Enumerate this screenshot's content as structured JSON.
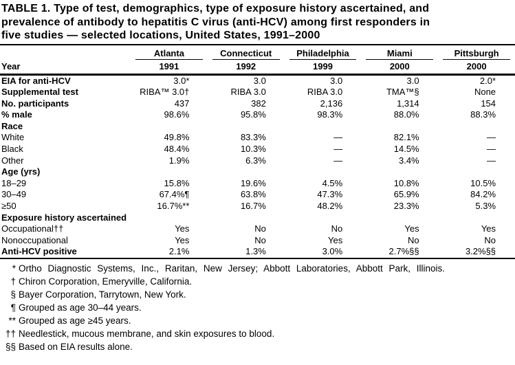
{
  "title": {
    "lines": [
      "TABLE 1. Type of test, demographics, type of exposure history ascertained, and",
      "prevalence of antibody to hepatitis C virus (anti-HCV) among first responders in",
      "five studies — selected locations, United States, 1991–2000"
    ]
  },
  "table": {
    "year_label": "Year",
    "columns": [
      {
        "city": "Atlanta",
        "year": "1991"
      },
      {
        "city": "Connecticut",
        "year": "1992"
      },
      {
        "city": "Philadelphia",
        "year": "1999"
      },
      {
        "city": "Miami",
        "year": "2000"
      },
      {
        "city": "Pittsburgh",
        "year": "2000"
      }
    ],
    "rows": [
      {
        "label": "EIA for anti-HCV",
        "bold": true,
        "indent": 0,
        "values": [
          "3.0*",
          "3.0",
          "3.0",
          "3.0",
          "2.0*"
        ]
      },
      {
        "label": "Supplemental test",
        "bold": true,
        "indent": 0,
        "values": [
          "RIBA™ 3.0†",
          "RIBA 3.0",
          "RIBA 3.0",
          "TMA™§",
          "None"
        ]
      },
      {
        "label": "No. participants",
        "bold": true,
        "indent": 0,
        "values": [
          "437",
          "382",
          "2,136",
          "1,314",
          "154"
        ]
      },
      {
        "label": "% male",
        "bold": true,
        "indent": 0,
        "values": [
          "98.6%",
          "95.8%",
          "98.3%",
          "88.0%",
          "88.3%"
        ]
      },
      {
        "label": "Race",
        "bold": true,
        "indent": 0,
        "values": []
      },
      {
        "label": "White",
        "bold": false,
        "indent": 1,
        "values": [
          "49.8%",
          "83.3%",
          "—",
          "82.1%",
          "—"
        ]
      },
      {
        "label": "Black",
        "bold": false,
        "indent": 1,
        "values": [
          "48.4%",
          "10.3%",
          "—",
          "14.5%",
          "—"
        ]
      },
      {
        "label": "Other",
        "bold": false,
        "indent": 1,
        "values": [
          "1.9%",
          "6.3%",
          "—",
          "3.4%",
          "—"
        ]
      },
      {
        "label": "Age (yrs)",
        "bold": true,
        "indent": 0,
        "values": []
      },
      {
        "label": "18–29",
        "bold": false,
        "indent": 1,
        "values": [
          "15.8%",
          "19.6%",
          "4.5%",
          "10.8%",
          "10.5%"
        ]
      },
      {
        "label": "30–49",
        "bold": false,
        "indent": 1,
        "values": [
          "67.4%¶",
          "63.8%",
          "47.3%",
          "65.9%",
          "84.2%"
        ]
      },
      {
        "label": "≥50",
        "bold": false,
        "indent": 2,
        "values": [
          "16.7%**",
          "16.7%",
          "48.2%",
          "23.3%",
          "5.3%"
        ]
      },
      {
        "label": "Exposure history ascertained",
        "bold": true,
        "indent": 0,
        "values": []
      },
      {
        "label": "Occupational††",
        "bold": false,
        "indent": 1,
        "values": [
          "Yes",
          "No",
          "No",
          "Yes",
          "Yes"
        ]
      },
      {
        "label": "Nonoccupational",
        "bold": false,
        "indent": 1,
        "values": [
          "Yes",
          "No",
          "Yes",
          "No",
          "No"
        ]
      },
      {
        "label": "Anti-HCV positive",
        "bold": true,
        "indent": 0,
        "values": [
          "2.1%",
          "1.3%",
          "3.0%",
          "2.7%§§",
          "3.2%§§"
        ]
      }
    ]
  },
  "footnotes": [
    {
      "marker": "*",
      "text": "Ortho Diagnostic Systems, Inc., Raritan, New Jersey; Abbott Laboratories, Abbott Park, Illinois."
    },
    {
      "marker": "†",
      "text": "Chiron Corporation, Emeryville, California."
    },
    {
      "marker": "§",
      "text": "Bayer Corporation, Tarrytown, New York."
    },
    {
      "marker": "¶",
      "text": "Grouped as age 30–44 years."
    },
    {
      "marker": "**",
      "text": "Grouped as age ≥45 years."
    },
    {
      "marker": "††",
      "text": "Needlestick, mucous membrane, and skin exposures to blood."
    },
    {
      "marker": "§§",
      "text": "Based on EIA results alone."
    }
  ]
}
